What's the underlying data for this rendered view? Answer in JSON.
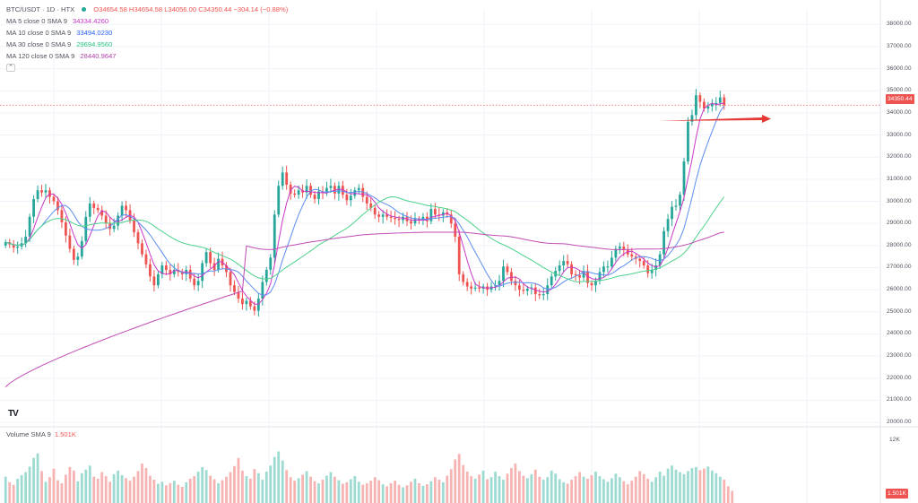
{
  "header": {
    "symbol": "BTC/USDT · 1D · HTX",
    "ohlc": "O34654.58  H34654.58  L34056.00  C34350.44  −304.14 (−0.88%)",
    "collapse_icon": "chevron-up-icon"
  },
  "ma_legend": [
    {
      "name": "MA 5 close 0 SMA 9",
      "value": "34334.4260",
      "color": "#c837c8"
    },
    {
      "name": "MA 10 close 0 SMA 9",
      "value": "33494.0230",
      "color": "#2962ff"
    },
    {
      "name": "MA 30 close 0 SMA 9",
      "value": "29694.9560",
      "color": "#26c281"
    },
    {
      "name": "MA 120 close 0 SMA 9",
      "value": "28440.9647",
      "color": "#b042a8"
    }
  ],
  "volume_legend": {
    "name": "Volume SMA 9",
    "value": "1.501K"
  },
  "price_badge": "34350.44",
  "volume_badge": "1.501K",
  "logo_text": "TV",
  "colors": {
    "up": "#26a69a",
    "down": "#ef5350",
    "ma5": "#c837c8",
    "ma10": "#5b8def",
    "ma30": "#4cd28a",
    "ma120": "#c04cb4",
    "arrow": "#e53935"
  },
  "chart_data": {
    "type": "candlestick",
    "title": "BTC/USDT · 1D · HTX",
    "price_axis": {
      "ticks": [
        38000,
        37000,
        36000,
        35000,
        34000,
        33000,
        32000,
        31000,
        30000,
        29000,
        28000,
        27000,
        26000,
        25000,
        24000,
        23000,
        22000,
        21000,
        20000
      ],
      "tick_labels": [
        "38000.00",
        "37000.00",
        "36000.00",
        "35000.00",
        "34000.00",
        "33000.00",
        "32000.00",
        "31000.00",
        "30000.00",
        "29000.00",
        "28000.00",
        "27000.00",
        "26000.00",
        "25000.00",
        "24000.00",
        "23000.00",
        "22000.00",
        "21000.00",
        "20000.00"
      ],
      "range": [
        19800,
        38700
      ]
    },
    "volume_axis": {
      "tick_labels": [
        "12K"
      ],
      "ticks": [
        12000
      ],
      "range": [
        0,
        14000
      ]
    },
    "grid": true,
    "current_price": 34350.44,
    "closes": [
      28150,
      28050,
      27900,
      27950,
      28100,
      28400,
      29300,
      30100,
      30500,
      30400,
      30500,
      30200,
      30000,
      29600,
      29050,
      28450,
      27850,
      27350,
      27500,
      28200,
      29300,
      29900,
      29700,
      29600,
      29350,
      29000,
      28750,
      28900,
      29350,
      29800,
      29600,
      29150,
      28600,
      28100,
      27600,
      27150,
      26600,
      26200,
      26700,
      27100,
      26900,
      26700,
      26900,
      26800,
      26700,
      26900,
      26500,
      26200,
      26400,
      27200,
      27700,
      27200,
      26900,
      27400,
      27100,
      26800,
      26200,
      25900,
      25600,
      25350,
      25500,
      25250,
      25050,
      25600,
      26350,
      26900,
      27450,
      29400,
      30700,
      31300,
      30750,
      30350,
      30300,
      30500,
      30400,
      30700,
      30300,
      30100,
      30450,
      30400,
      30600,
      30700,
      30350,
      30700,
      30300,
      30050,
      30250,
      30500,
      30600,
      30200,
      29900,
      29700,
      29400,
      29300,
      29400,
      29300,
      29250,
      29200,
      29150,
      29300,
      29100,
      29000,
      29200,
      29150,
      29300,
      29100,
      29650,
      29400,
      29350,
      29500,
      29400,
      29000,
      28400,
      26700,
      26350,
      26150,
      26050,
      26100,
      26050,
      26150,
      26000,
      26150,
      26200,
      26400,
      27050,
      26800,
      26400,
      26200,
      26000,
      25950,
      26050,
      26100,
      25800,
      25750,
      25800,
      26200,
      26600,
      26850,
      27100,
      27300,
      27150,
      26700,
      26650,
      26550,
      26850,
      26300,
      26200,
      26400,
      26800,
      27050,
      27050,
      27450,
      27850,
      27950,
      27800,
      27600,
      27500,
      27400,
      27300,
      27100,
      26750,
      26900,
      27100,
      27600,
      28650,
      29200,
      29750,
      29800,
      30300,
      31800,
      33600,
      33900,
      34800,
      34500,
      34200,
      34300,
      34400,
      34450,
      34700,
      34350
    ],
    "volumes_k": [
      5.2,
      4.1,
      3.6,
      4.8,
      5.5,
      6.1,
      7.2,
      8.9,
      9.8,
      6.3,
      4.2,
      5.1,
      6.8,
      4.5,
      3.9,
      5.6,
      7.1,
      6.4,
      4.3,
      5.9,
      6.6,
      7.4,
      5.2,
      4.8,
      6.1,
      5.3,
      4.2,
      5.7,
      6.4,
      5.5,
      4.9,
      4.4,
      5.2,
      6.3,
      7.8,
      6.9,
      5.4,
      4.6,
      3.8,
      4.2,
      3.5,
      3.9,
      4.4,
      3.6,
      3.2,
      4.1,
      4.8,
      5.3,
      6.2,
      7.1,
      6.5,
      5.4,
      4.7,
      3.9,
      4.5,
      5.2,
      6.1,
      7.3,
      8.9,
      6.4,
      5.3,
      4.8,
      6.7,
      5.9,
      4.6,
      6.2,
      7.4,
      9.1,
      10.2,
      8.4,
      6.5,
      5.1,
      4.4,
      4.9,
      5.6,
      6.3,
      5.2,
      4.3,
      3.9,
      4.6,
      5.4,
      6.1,
      5.2,
      4.5,
      3.8,
      4.1,
      4.7,
      5.3,
      4.2,
      3.6,
      3.9,
      4.4,
      5.1,
      4.5,
      3.7,
      3.3,
      3.9,
      4.4,
      3.6,
      3.1,
      3.5,
      4.2,
      4.8,
      3.9,
      3.4,
      3.7,
      4.3,
      5.1,
      4.6,
      4.1,
      5.4,
      6.7,
      8.6,
      9.7,
      7.5,
      6.2,
      5.3,
      4.8,
      5.6,
      6.4,
      4.7,
      5.1,
      6.2,
      5.3,
      4.6,
      5.8,
      6.9,
      7.8,
      6.3,
      5.4,
      4.9,
      5.7,
      6.6,
      5.2,
      4.6,
      5.1,
      6.4,
      5.8,
      4.7,
      4.1,
      3.8,
      4.6,
      5.3,
      6.1,
      5.2,
      4.8,
      5.5,
      6.2,
      5.3,
      4.7,
      4.2,
      4.9,
      5.8,
      5.1,
      4.3,
      3.7,
      4.4,
      5.2,
      6.3,
      5.7,
      4.8,
      4.2,
      5.1,
      6.2,
      5.4,
      6.8,
      7.4,
      6.6,
      6.1,
      5.7,
      6.3,
      6.9,
      7.1,
      6.5,
      6.8,
      7.2,
      6.4,
      5.9,
      5.2,
      4.6,
      3.3,
      2.4
    ]
  }
}
